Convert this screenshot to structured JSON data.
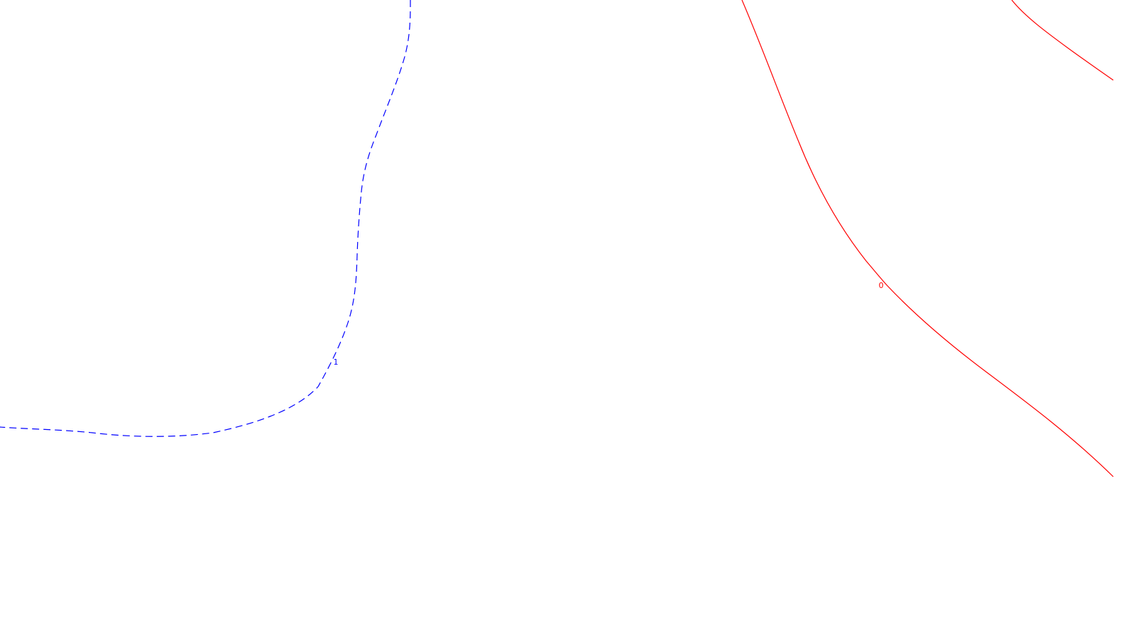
{
  "map": {
    "contours": [
      {
        "label": "1",
        "color": "#0000ff",
        "style": "dashed"
      },
      {
        "label": "0",
        "color": "#ff0000",
        "style": "solid"
      },
      {
        "label": "",
        "color": "#ff0000",
        "style": "solid"
      }
    ]
  }
}
